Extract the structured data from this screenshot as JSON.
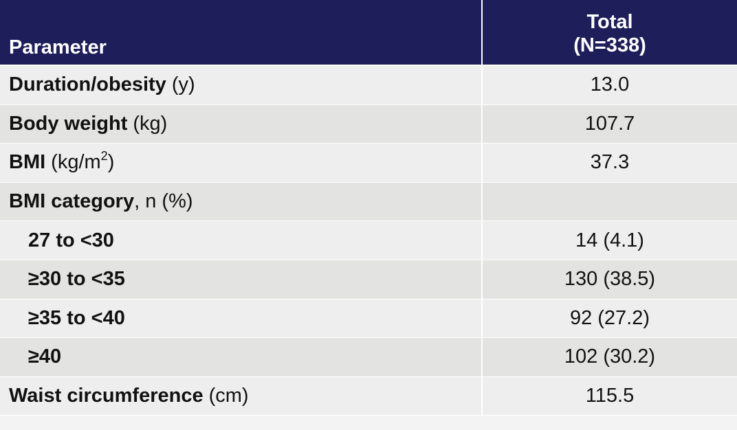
{
  "header": {
    "parameter": "Parameter",
    "total_line1": "Total",
    "total_line2": "(N=338)"
  },
  "rows": [
    {
      "label": "Duration/obesity",
      "unit": "(y)",
      "value": "13.0"
    },
    {
      "label": "Body weight",
      "unit": "(kg)",
      "value": "107.7"
    },
    {
      "label": "BMI",
      "unit_pre": "(kg/m",
      "unit_sup": "2",
      "unit_post": ")",
      "value": "37.3"
    },
    {
      "label": "BMI category",
      "unit": ", n (%)",
      "value": ""
    },
    {
      "label": "27 to <30",
      "value": "14 (4.1)"
    },
    {
      "label": "≥30 to <35",
      "value": "130 (38.5)"
    },
    {
      "label": "≥35 to <40",
      "value": "92 (27.2)"
    },
    {
      "label": "≥40",
      "value": "102 (30.2)"
    },
    {
      "label": "Waist circumference",
      "unit": "(cm)",
      "value": "115.5"
    }
  ]
}
